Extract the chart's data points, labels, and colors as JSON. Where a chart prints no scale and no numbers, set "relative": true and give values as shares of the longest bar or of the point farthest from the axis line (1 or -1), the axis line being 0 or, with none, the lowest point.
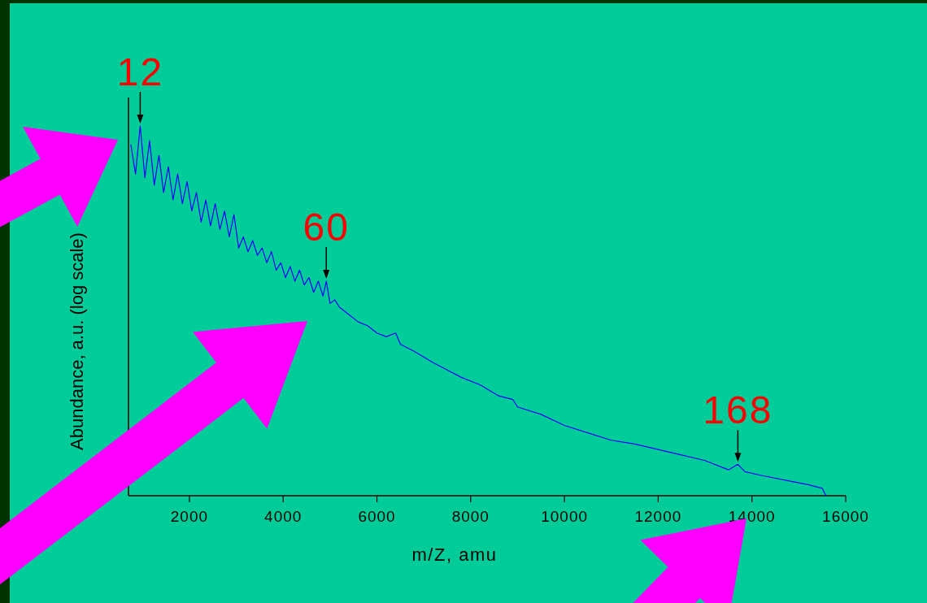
{
  "chart_data": {
    "type": "line",
    "xlabel": "m/Z, amu",
    "ylabel": "Abundance, a.u. (log scale)",
    "relative": true,
    "color": "#0000ff",
    "xlim": [
      700,
      16000
    ],
    "xticks": [
      2000,
      4000,
      6000,
      8000,
      10000,
      12000,
      14000,
      16000
    ],
    "x": [
      750,
      850,
      950,
      1050,
      1150,
      1250,
      1350,
      1450,
      1550,
      1650,
      1750,
      1850,
      1950,
      2050,
      2150,
      2250,
      2350,
      2450,
      2550,
      2650,
      2750,
      2850,
      2950,
      3050,
      3150,
      3250,
      3350,
      3450,
      3550,
      3650,
      3750,
      3850,
      3950,
      4050,
      4150,
      4250,
      4350,
      4450,
      4550,
      4650,
      4750,
      4850,
      4920,
      5000,
      5100,
      5200,
      5300,
      5400,
      5600,
      5800,
      6000,
      6200,
      6400,
      6500,
      6800,
      7200,
      7500,
      7800,
      8200,
      8600,
      8900,
      9000,
      9500,
      10000,
      10500,
      11000,
      11500,
      12000,
      12500,
      13000,
      13500,
      13700,
      13850,
      14200,
      14800,
      15200,
      15500,
      15580
    ],
    "values": [
      0.95,
      0.87,
      1.0,
      0.86,
      0.96,
      0.84,
      0.92,
      0.82,
      0.89,
      0.8,
      0.87,
      0.79,
      0.85,
      0.77,
      0.82,
      0.74,
      0.8,
      0.73,
      0.79,
      0.72,
      0.77,
      0.7,
      0.76,
      0.67,
      0.7,
      0.66,
      0.69,
      0.65,
      0.67,
      0.63,
      0.66,
      0.61,
      0.63,
      0.59,
      0.62,
      0.58,
      0.61,
      0.57,
      0.59,
      0.55,
      0.58,
      0.54,
      0.58,
      0.52,
      0.53,
      0.51,
      0.5,
      0.49,
      0.47,
      0.46,
      0.44,
      0.43,
      0.44,
      0.41,
      0.39,
      0.36,
      0.34,
      0.32,
      0.3,
      0.27,
      0.26,
      0.24,
      0.22,
      0.19,
      0.17,
      0.15,
      0.14,
      0.125,
      0.11,
      0.095,
      0.07,
      0.085,
      0.065,
      0.055,
      0.04,
      0.03,
      0.02,
      0.0
    ],
    "annotations": [
      {
        "text": "12",
        "x": 950,
        "y": 1.0
      },
      {
        "text": "60",
        "x": 4920,
        "y": 0.58
      },
      {
        "text": "168",
        "x": 13700,
        "y": 0.085
      }
    ]
  }
}
